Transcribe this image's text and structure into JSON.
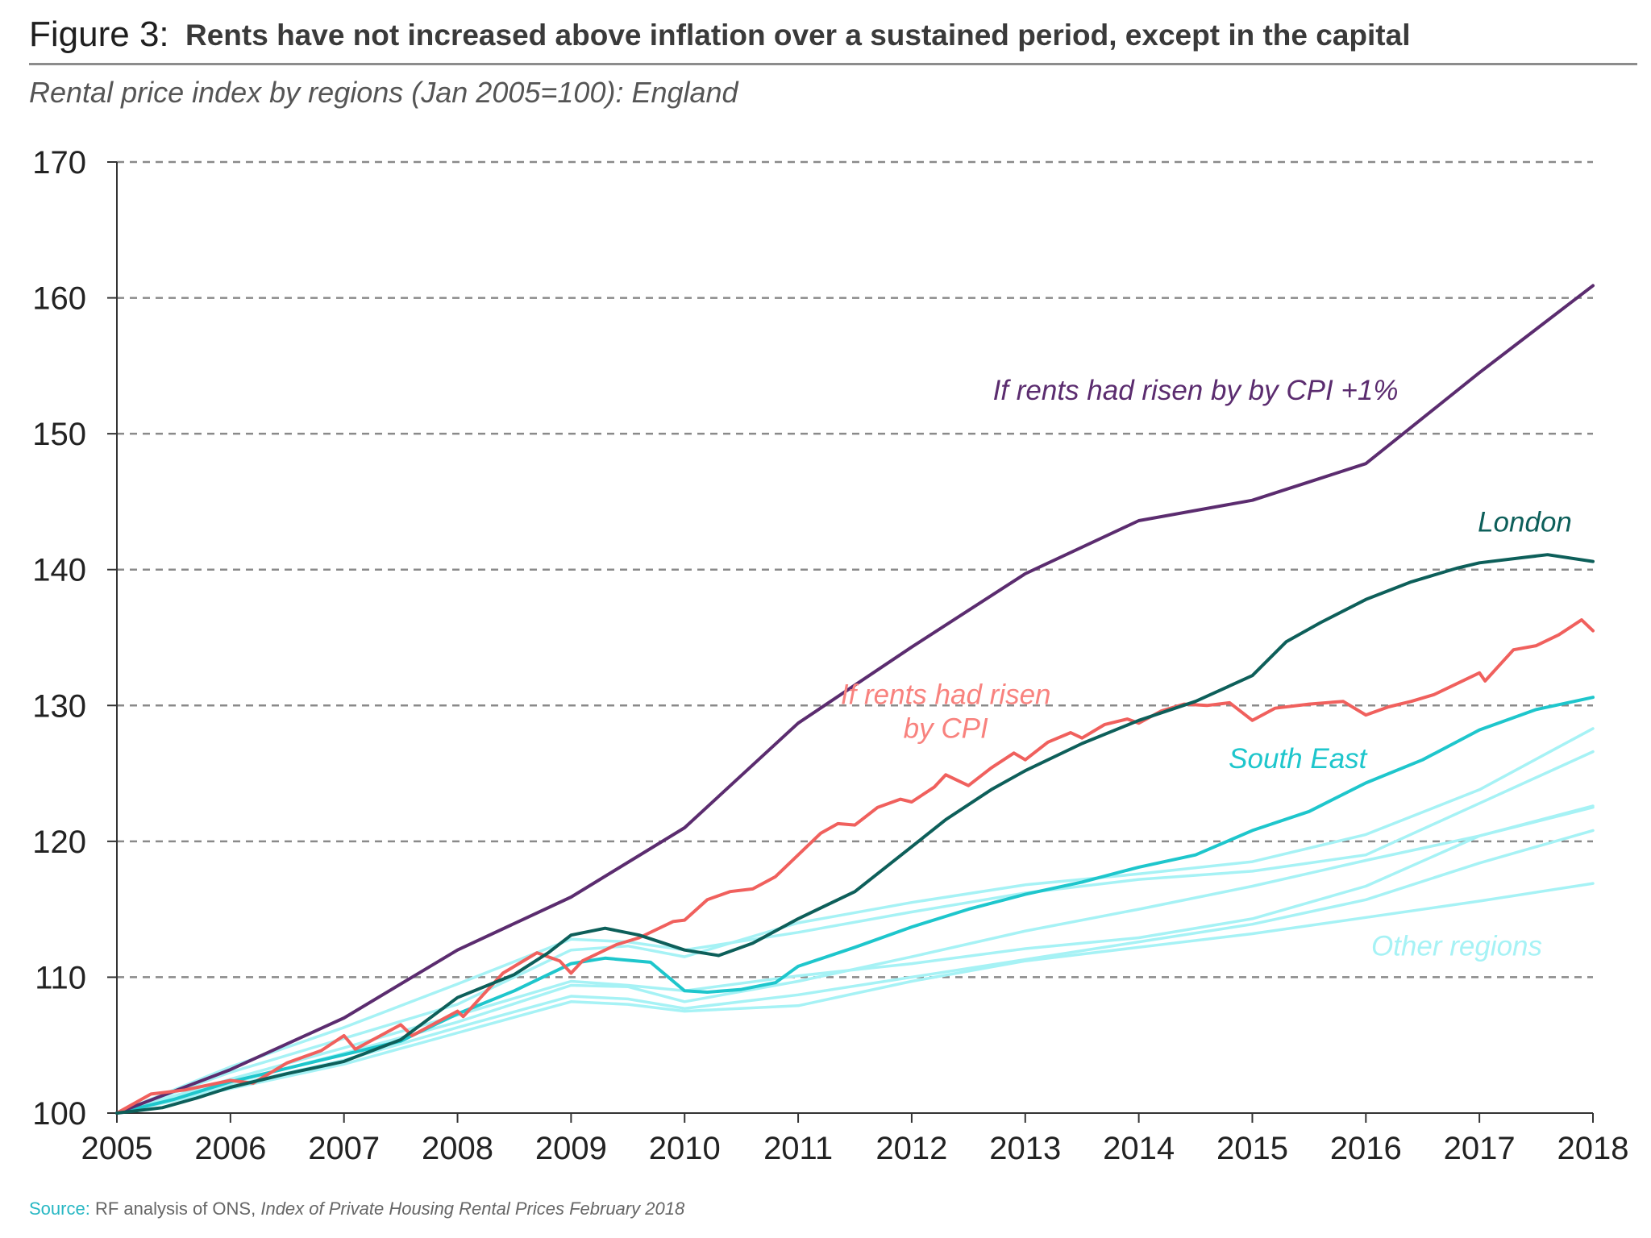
{
  "header": {
    "figure_label": "Figure 3:",
    "title": "Rents have not increased above inflation over a sustained period, except in the capital"
  },
  "subtitle": "Rental price index by regions (Jan 2005=100): England",
  "source": {
    "label": "Source:",
    "text": " RF analysis of ONS, ",
    "italic": "Index of Private Housing Rental Prices February 2018"
  },
  "chart_data": {
    "type": "line",
    "xlim": [
      2005,
      2018
    ],
    "ylim": [
      100,
      170
    ],
    "xticks": [
      2005,
      2006,
      2007,
      2008,
      2009,
      2010,
      2011,
      2012,
      2013,
      2014,
      2015,
      2016,
      2017,
      2018
    ],
    "yticks": [
      100,
      110,
      120,
      130,
      140,
      150,
      160,
      170
    ],
    "grid": "horizontal-dashed",
    "colors": {
      "cpi_plus_1": "#5b2c6f",
      "london": "#0d5f5a",
      "cpi": "#f0605d",
      "south_east": "#1ec6cc",
      "other_regions": "#a6f2f5",
      "axis": "#333333",
      "grid": "#8a8a8a"
    },
    "series": [
      {
        "key": "cpi_plus_1",
        "name": "If rents had risen by by CPI +1%",
        "color": "#5b2c6f",
        "width": 4,
        "points": [
          [
            2005,
            100
          ],
          [
            2006,
            103.2
          ],
          [
            2007,
            107
          ],
          [
            2008,
            112
          ],
          [
            2009,
            115.9
          ],
          [
            2010,
            121
          ],
          [
            2011,
            128.7
          ],
          [
            2012,
            134.3
          ],
          [
            2013,
            139.7
          ],
          [
            2014,
            143.6
          ],
          [
            2015,
            145.1
          ],
          [
            2016,
            147.8
          ],
          [
            2017,
            154.5
          ],
          [
            2018,
            160.9
          ]
        ]
      },
      {
        "key": "cpi",
        "name": "If rents had risen by CPI",
        "color": "#f0605d",
        "width": 4,
        "points": [
          [
            2005,
            100
          ],
          [
            2005.3,
            101.4
          ],
          [
            2005.6,
            101.7
          ],
          [
            2006,
            102.4
          ],
          [
            2006.2,
            102.2
          ],
          [
            2006.5,
            103.7
          ],
          [
            2006.8,
            104.6
          ],
          [
            2007,
            105.7
          ],
          [
            2007.1,
            104.7
          ],
          [
            2007.5,
            106.5
          ],
          [
            2007.6,
            105.7
          ],
          [
            2008,
            107.5
          ],
          [
            2008.05,
            107.1
          ],
          [
            2008.4,
            110.3
          ],
          [
            2008.7,
            111.8
          ],
          [
            2008.9,
            111.2
          ],
          [
            2009,
            110.3
          ],
          [
            2009.1,
            111.2
          ],
          [
            2009.4,
            112.4
          ],
          [
            2009.6,
            112.9
          ],
          [
            2009.9,
            114.1
          ],
          [
            2010,
            114.2
          ],
          [
            2010.2,
            115.7
          ],
          [
            2010.4,
            116.3
          ],
          [
            2010.6,
            116.5
          ],
          [
            2010.8,
            117.4
          ],
          [
            2011,
            119
          ],
          [
            2011.2,
            120.6
          ],
          [
            2011.35,
            121.3
          ],
          [
            2011.5,
            121.2
          ],
          [
            2011.7,
            122.5
          ],
          [
            2011.9,
            123.1
          ],
          [
            2012,
            122.9
          ],
          [
            2012.2,
            124
          ],
          [
            2012.3,
            124.9
          ],
          [
            2012.5,
            124.1
          ],
          [
            2012.7,
            125.4
          ],
          [
            2012.9,
            126.5
          ],
          [
            2013,
            126
          ],
          [
            2013.2,
            127.3
          ],
          [
            2013.4,
            128
          ],
          [
            2013.5,
            127.6
          ],
          [
            2013.7,
            128.6
          ],
          [
            2013.9,
            129
          ],
          [
            2014,
            128.7
          ],
          [
            2014.2,
            129.6
          ],
          [
            2014.4,
            130.1
          ],
          [
            2014.6,
            130
          ],
          [
            2014.8,
            130.2
          ],
          [
            2015,
            128.9
          ],
          [
            2015.2,
            129.8
          ],
          [
            2015.5,
            130.1
          ],
          [
            2015.8,
            130.3
          ],
          [
            2016,
            129.3
          ],
          [
            2016.2,
            129.9
          ],
          [
            2016.4,
            130.3
          ],
          [
            2016.6,
            130.8
          ],
          [
            2016.8,
            131.6
          ],
          [
            2017,
            132.4
          ],
          [
            2017.05,
            131.8
          ],
          [
            2017.3,
            134.1
          ],
          [
            2017.5,
            134.4
          ],
          [
            2017.7,
            135.2
          ],
          [
            2017.9,
            136.3
          ],
          [
            2018,
            135.5
          ]
        ]
      },
      {
        "key": "london",
        "name": "London",
        "color": "#0d5f5a",
        "width": 4,
        "points": [
          [
            2005,
            100
          ],
          [
            2005.4,
            100.4
          ],
          [
            2005.7,
            101.1
          ],
          [
            2006,
            101.9
          ],
          [
            2006.5,
            102.9
          ],
          [
            2007,
            103.8
          ],
          [
            2007.5,
            105.4
          ],
          [
            2008,
            108.5
          ],
          [
            2008.5,
            110.2
          ],
          [
            2008.8,
            111.8
          ],
          [
            2009,
            113.1
          ],
          [
            2009.3,
            113.6
          ],
          [
            2009.6,
            113.1
          ],
          [
            2010,
            112
          ],
          [
            2010.3,
            111.6
          ],
          [
            2010.6,
            112.5
          ],
          [
            2011,
            114.3
          ],
          [
            2011.5,
            116.3
          ],
          [
            2012,
            119.6
          ],
          [
            2012.3,
            121.6
          ],
          [
            2012.7,
            123.8
          ],
          [
            2013,
            125.2
          ],
          [
            2013.5,
            127.2
          ],
          [
            2014,
            128.9
          ],
          [
            2014.5,
            130.3
          ],
          [
            2015,
            132.2
          ],
          [
            2015.3,
            134.7
          ],
          [
            2015.6,
            136.1
          ],
          [
            2016,
            137.8
          ],
          [
            2016.4,
            139.1
          ],
          [
            2016.8,
            140.1
          ],
          [
            2017,
            140.5
          ],
          [
            2017.4,
            140.9
          ],
          [
            2017.6,
            141.1
          ],
          [
            2018,
            140.6
          ]
        ]
      },
      {
        "key": "south_east",
        "name": "South East",
        "color": "#1ec6cc",
        "width": 4,
        "points": [
          [
            2005,
            100
          ],
          [
            2005.5,
            101
          ],
          [
            2006,
            102.3
          ],
          [
            2006.5,
            103.3
          ],
          [
            2007,
            104.3
          ],
          [
            2007.5,
            105.3
          ],
          [
            2008,
            107.3
          ],
          [
            2008.5,
            109
          ],
          [
            2009,
            111
          ],
          [
            2009.3,
            111.4
          ],
          [
            2009.7,
            111.1
          ],
          [
            2010,
            109
          ],
          [
            2010.2,
            108.9
          ],
          [
            2010.5,
            109.1
          ],
          [
            2010.8,
            109.6
          ],
          [
            2011,
            110.8
          ],
          [
            2011.5,
            112.2
          ],
          [
            2012,
            113.7
          ],
          [
            2012.5,
            115
          ],
          [
            2013,
            116.1
          ],
          [
            2013.5,
            117
          ],
          [
            2014,
            118.1
          ],
          [
            2014.5,
            119
          ],
          [
            2015,
            120.8
          ],
          [
            2015.5,
            122.2
          ],
          [
            2016,
            124.3
          ],
          [
            2016.5,
            126
          ],
          [
            2017,
            128.2
          ],
          [
            2017.5,
            129.7
          ],
          [
            2018,
            130.6
          ]
        ]
      },
      {
        "key": "other_1",
        "name": "Other regions",
        "color": "#a6f2f5",
        "width": 3.5,
        "points": [
          [
            2005,
            100
          ],
          [
            2006,
            103
          ],
          [
            2007,
            105.5
          ],
          [
            2008,
            108
          ],
          [
            2009,
            112
          ],
          [
            2009.5,
            112.3
          ],
          [
            2010,
            111.5
          ],
          [
            2011,
            114
          ],
          [
            2012,
            115.5
          ],
          [
            2013,
            116.8
          ],
          [
            2014,
            117.6
          ],
          [
            2015,
            118.5
          ],
          [
            2016,
            120.5
          ],
          [
            2017,
            123.8
          ],
          [
            2018,
            128.3
          ]
        ]
      },
      {
        "key": "other_2",
        "name": "Other regions",
        "color": "#a6f2f5",
        "width": 3.5,
        "points": [
          [
            2005,
            100
          ],
          [
            2006,
            103.4
          ],
          [
            2007,
            106.3
          ],
          [
            2008,
            109.5
          ],
          [
            2009,
            112.8
          ],
          [
            2009.5,
            112.6
          ],
          [
            2010,
            112
          ],
          [
            2011,
            113.3
          ],
          [
            2012,
            114.8
          ],
          [
            2013,
            116.2
          ],
          [
            2014,
            117.2
          ],
          [
            2015,
            117.8
          ],
          [
            2016,
            119
          ],
          [
            2017,
            122.8
          ],
          [
            2018,
            126.6
          ]
        ]
      },
      {
        "key": "other_3",
        "name": "Other regions",
        "color": "#a6f2f5",
        "width": 3.5,
        "points": [
          [
            2005,
            100
          ],
          [
            2006,
            102.2
          ],
          [
            2007,
            104.4
          ],
          [
            2008,
            106.7
          ],
          [
            2009,
            109.4
          ],
          [
            2009.5,
            109.3
          ],
          [
            2010,
            108.2
          ],
          [
            2011,
            109.7
          ],
          [
            2012,
            111.5
          ],
          [
            2013,
            113.4
          ],
          [
            2014,
            115
          ],
          [
            2015,
            116.7
          ],
          [
            2016,
            118.6
          ],
          [
            2017,
            120.4
          ],
          [
            2018,
            122.6
          ]
        ]
      },
      {
        "key": "other_4",
        "name": "Other regions",
        "color": "#a6f2f5",
        "width": 3.5,
        "points": [
          [
            2005,
            100
          ],
          [
            2006,
            102
          ],
          [
            2007,
            103.9
          ],
          [
            2008,
            106.3
          ],
          [
            2009,
            108.6
          ],
          [
            2009.5,
            108.4
          ],
          [
            2010,
            107.7
          ],
          [
            2011,
            108.7
          ],
          [
            2012,
            110
          ],
          [
            2013,
            111.3
          ],
          [
            2014,
            112.6
          ],
          [
            2015,
            113.9
          ],
          [
            2016,
            115.7
          ],
          [
            2017,
            118.4
          ],
          [
            2018,
            120.8
          ]
        ]
      },
      {
        "key": "other_5",
        "name": "Other regions",
        "color": "#a6f2f5",
        "width": 3.5,
        "points": [
          [
            2005,
            100
          ],
          [
            2006,
            101.8
          ],
          [
            2007,
            103.6
          ],
          [
            2008,
            105.9
          ],
          [
            2009,
            108.2
          ],
          [
            2009.5,
            108
          ],
          [
            2010,
            107.5
          ],
          [
            2011,
            107.9
          ],
          [
            2012,
            109.7
          ],
          [
            2013,
            111.2
          ],
          [
            2014,
            112.2
          ],
          [
            2015,
            113.2
          ],
          [
            2016,
            114.4
          ],
          [
            2017,
            115.6
          ],
          [
            2018,
            116.9
          ]
        ]
      },
      {
        "key": "other_6",
        "name": "Other regions",
        "color": "#a6f2f5",
        "width": 3.5,
        "points": [
          [
            2005,
            100
          ],
          [
            2006,
            102.5
          ],
          [
            2007,
            104.8
          ],
          [
            2008,
            107.2
          ],
          [
            2009,
            109.7
          ],
          [
            2009.5,
            109.4
          ],
          [
            2010,
            109
          ],
          [
            2011,
            110.1
          ],
          [
            2012,
            111
          ],
          [
            2013,
            112.1
          ],
          [
            2014,
            112.9
          ],
          [
            2015,
            114.3
          ],
          [
            2016,
            116.7
          ],
          [
            2017,
            120.4
          ],
          [
            2018,
            122.5
          ]
        ]
      }
    ],
    "annotations": [
      {
        "key": "cpi_plus_1",
        "lines": [
          "If rents had risen by by CPI +1%"
        ],
        "color": "#5b2c6f",
        "x": 2014.5,
        "y": 152.5
      },
      {
        "key": "london",
        "lines": [
          "London"
        ],
        "color": "#0d5f5a",
        "x": 2017.4,
        "y": 142.8
      },
      {
        "key": "cpi",
        "lines": [
          "If rents had risen",
          "by CPI"
        ],
        "color": "#f8827e",
        "x": 2012.3,
        "y": 130.1
      },
      {
        "key": "south_east",
        "lines": [
          "South East"
        ],
        "color": "#1ec6cc",
        "x": 2015.4,
        "y": 125.4
      },
      {
        "key": "other_regions",
        "lines": [
          "Other regions"
        ],
        "color": "#a6f2f5",
        "x": 2016.8,
        "y": 111.6
      }
    ]
  }
}
